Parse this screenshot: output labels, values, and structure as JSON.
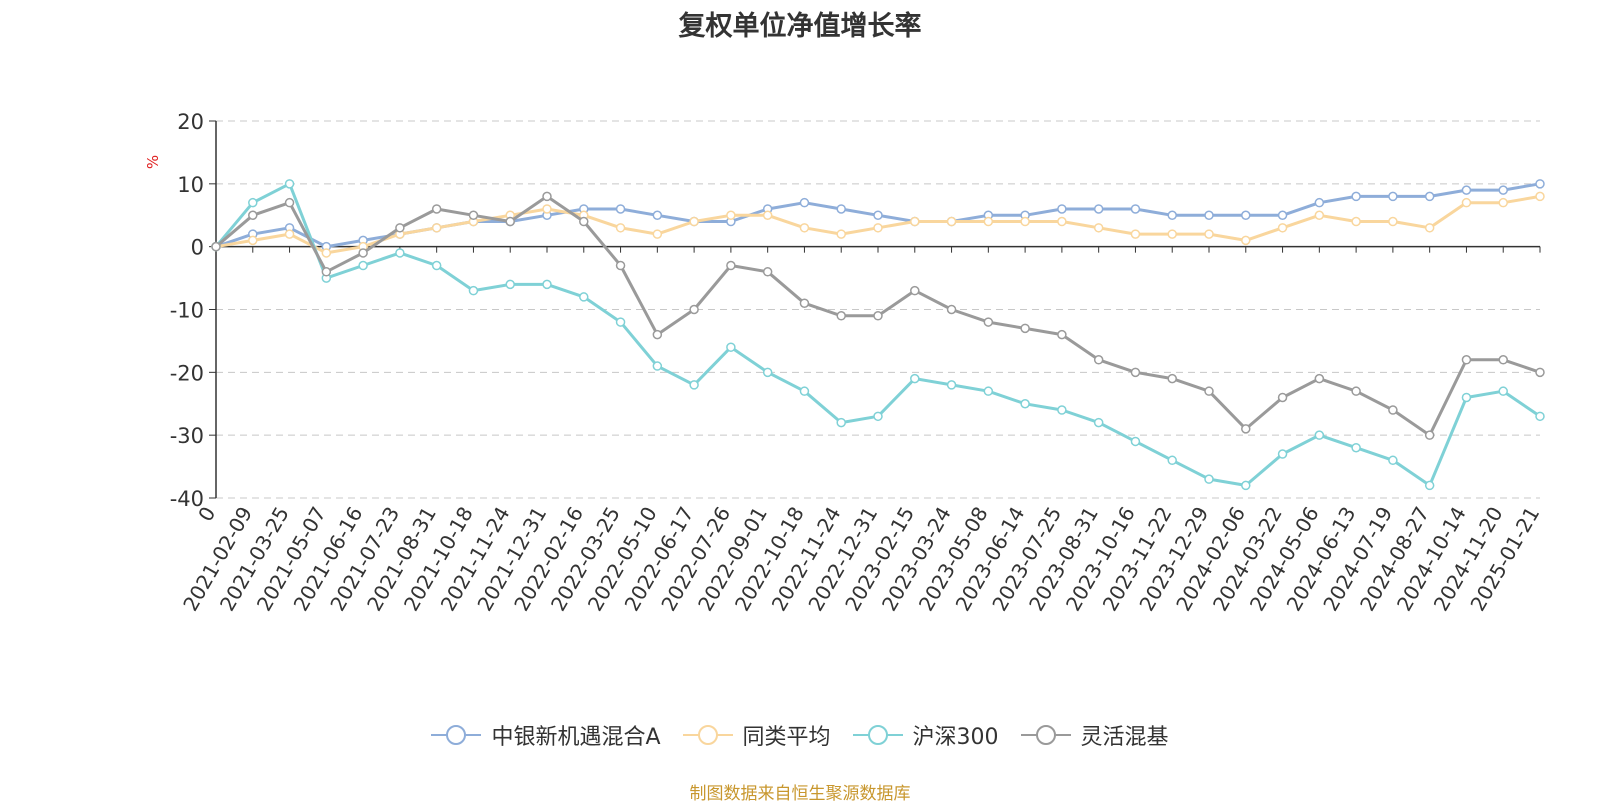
{
  "source_note": "制图数据来自恒生聚源数据库",
  "chart_data": {
    "type": "line",
    "title": "复权单位净值增长率",
    "ylabel": "%",
    "ylim": [
      -40,
      20
    ],
    "yticks": [
      20,
      10,
      0,
      -10,
      -20,
      -30,
      -40
    ],
    "grid": true,
    "legend_position": "bottom",
    "x_ticks": [
      "0",
      "2021-02-09",
      "2021-03-25",
      "2021-05-07",
      "2021-06-16",
      "2021-07-23",
      "2021-08-31",
      "2021-10-18",
      "2021-11-24",
      "2021-12-31",
      "2022-02-16",
      "2022-03-25",
      "2022-05-10",
      "2022-06-17",
      "2022-07-26",
      "2022-09-01",
      "2022-10-18",
      "2022-11-24",
      "2022-12-31",
      "2023-02-15",
      "2023-03-24",
      "2023-05-08",
      "2023-06-14",
      "2023-07-25",
      "2023-08-31",
      "2023-10-16",
      "2023-11-22",
      "2023-12-29",
      "2024-02-06",
      "2024-03-22",
      "2024-05-06",
      "2024-06-13",
      "2024-07-19",
      "2024-08-27",
      "2024-10-14",
      "2024-11-20",
      "2025-01-21"
    ],
    "series": [
      {
        "name": "中银新机遇混合A",
        "color": "#8eadd9",
        "values": [
          0,
          2,
          3,
          0,
          1,
          2,
          3,
          4,
          4,
          5,
          6,
          6,
          5,
          4,
          4,
          6,
          7,
          6,
          5,
          4,
          4,
          5,
          5,
          6,
          6,
          6,
          5,
          5,
          5,
          5,
          7,
          8,
          8,
          8,
          9,
          9,
          10
        ]
      },
      {
        "name": "同类平均",
        "color": "#f9d69d",
        "values": [
          0,
          1,
          2,
          -1,
          0,
          2,
          3,
          4,
          5,
          6,
          5,
          3,
          2,
          4,
          5,
          5,
          3,
          2,
          3,
          4,
          4,
          4,
          4,
          4,
          3,
          2,
          2,
          2,
          1,
          3,
          5,
          4,
          4,
          3,
          7,
          7,
          8
        ]
      },
      {
        "name": "沪深300",
        "color": "#7fd1d6",
        "values": [
          0,
          7,
          10,
          -5,
          -3,
          -1,
          -3,
          -7,
          -6,
          -6,
          -8,
          -12,
          -19,
          -22,
          -16,
          -20,
          -23,
          -28,
          -27,
          -21,
          -22,
          -23,
          -25,
          -26,
          -28,
          -31,
          -34,
          -37,
          -38,
          -33,
          -30,
          -32,
          -34,
          -38,
          -24,
          -23,
          -27
        ]
      },
      {
        "name": "灵活混基",
        "color": "#9a9a9a",
        "values": [
          0,
          5,
          7,
          -4,
          -1,
          3,
          6,
          5,
          4,
          8,
          4,
          -3,
          -14,
          -10,
          -3,
          -4,
          -9,
          -11,
          -11,
          -7,
          -10,
          -12,
          -13,
          -14,
          -18,
          -20,
          -21,
          -23,
          -29,
          -24,
          -21,
          -23,
          -26,
          -30,
          -18,
          -18,
          -20
        ]
      }
    ]
  }
}
